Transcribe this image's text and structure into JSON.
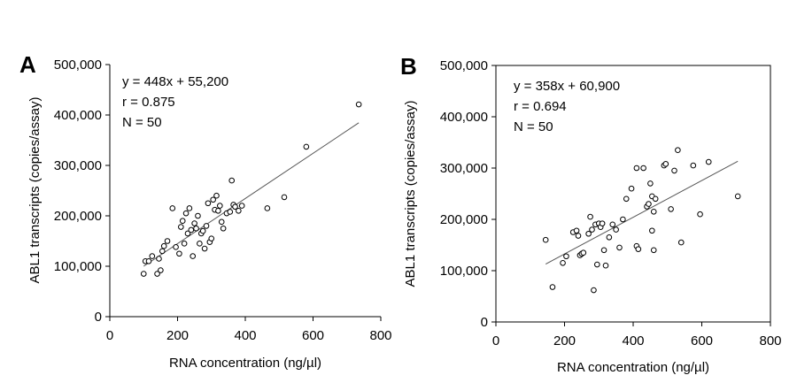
{
  "chart_data": [
    {
      "type": "scatter",
      "panel_label": "A",
      "xlabel": "RNA concentration (ng/µl)",
      "ylabel": "ABL1 transcripts (copies/assay)",
      "xlim": [
        0,
        800
      ],
      "ylim": [
        0,
        500000
      ],
      "x_ticks": [
        0,
        200,
        400,
        600,
        800
      ],
      "y_ticks": [
        0,
        100000,
        200000,
        300000,
        400000,
        500000
      ],
      "x_tick_labels": [
        "0",
        "200",
        "400",
        "600",
        "800"
      ],
      "y_tick_labels": [
        "0",
        "100,000",
        "200,000",
        "300,000",
        "400,000",
        "500,000"
      ],
      "annotations": [
        "y = 448x + 55,200",
        "r = 0.875",
        "N = 50"
      ],
      "trendline": {
        "slope": 448,
        "intercept": 55200,
        "x_range": [
          100,
          735
        ]
      },
      "grid": false,
      "marker": "open-circle",
      "x": [
        100,
        105,
        115,
        125,
        140,
        145,
        150,
        155,
        160,
        170,
        185,
        195,
        205,
        210,
        215,
        220,
        225,
        230,
        235,
        240,
        245,
        250,
        255,
        260,
        265,
        270,
        275,
        280,
        285,
        290,
        295,
        300,
        305,
        310,
        315,
        320,
        325,
        330,
        335,
        345,
        355,
        360,
        365,
        370,
        380,
        390,
        465,
        515,
        580,
        735
      ],
      "y": [
        85000,
        110000,
        110000,
        120000,
        85000,
        115000,
        92000,
        130000,
        140000,
        150000,
        215000,
        138000,
        125000,
        178000,
        190000,
        145000,
        205000,
        165000,
        215000,
        172000,
        120000,
        185000,
        175000,
        200000,
        145000,
        165000,
        170000,
        135000,
        180000,
        225000,
        148000,
        155000,
        232000,
        212000,
        240000,
        210000,
        220000,
        188000,
        175000,
        205000,
        208000,
        270000,
        222000,
        218000,
        210000,
        220000,
        215000,
        237000,
        337000,
        421000
      ]
    },
    {
      "type": "scatter",
      "panel_label": "B",
      "xlabel": "RNA concentration (ng/µl)",
      "ylabel": "ABL1 transcripts (copies/assay)",
      "xlim": [
        0,
        800
      ],
      "ylim": [
        0,
        500000
      ],
      "x_ticks": [
        0,
        200,
        400,
        600,
        800
      ],
      "y_ticks": [
        0,
        100000,
        200000,
        300000,
        400000,
        500000
      ],
      "x_tick_labels": [
        "0",
        "200",
        "400",
        "600",
        "800"
      ],
      "y_tick_labels": [
        "0",
        "100,000",
        "200,000",
        "300,000",
        "400,000",
        "500,000"
      ],
      "annotations": [
        "y = 358x + 60,900",
        "r = 0.694",
        "N = 50"
      ],
      "trendline": {
        "slope": 358,
        "intercept": 60900,
        "x_range": [
          145,
          705
        ]
      },
      "grid": false,
      "marker": "open-circle",
      "x": [
        145,
        165,
        195,
        205,
        225,
        235,
        240,
        245,
        250,
        255,
        270,
        275,
        280,
        285,
        290,
        295,
        300,
        305,
        310,
        315,
        320,
        330,
        340,
        350,
        360,
        370,
        380,
        395,
        410,
        410,
        415,
        430,
        440,
        445,
        450,
        455,
        455,
        460,
        460,
        465,
        490,
        495,
        510,
        520,
        530,
        540,
        575,
        595,
        620,
        705
      ],
      "y": [
        160000,
        68000,
        115000,
        128000,
        175000,
        178000,
        168000,
        130000,
        133000,
        135000,
        172000,
        205000,
        180000,
        62000,
        190000,
        112000,
        192000,
        185000,
        192000,
        140000,
        110000,
        165000,
        190000,
        180000,
        145000,
        200000,
        240000,
        260000,
        300000,
        148000,
        142000,
        300000,
        225000,
        230000,
        270000,
        245000,
        178000,
        140000,
        215000,
        240000,
        305000,
        308000,
        220000,
        295000,
        335000,
        155000,
        305000,
        210000,
        312000,
        245000
      ]
    }
  ]
}
